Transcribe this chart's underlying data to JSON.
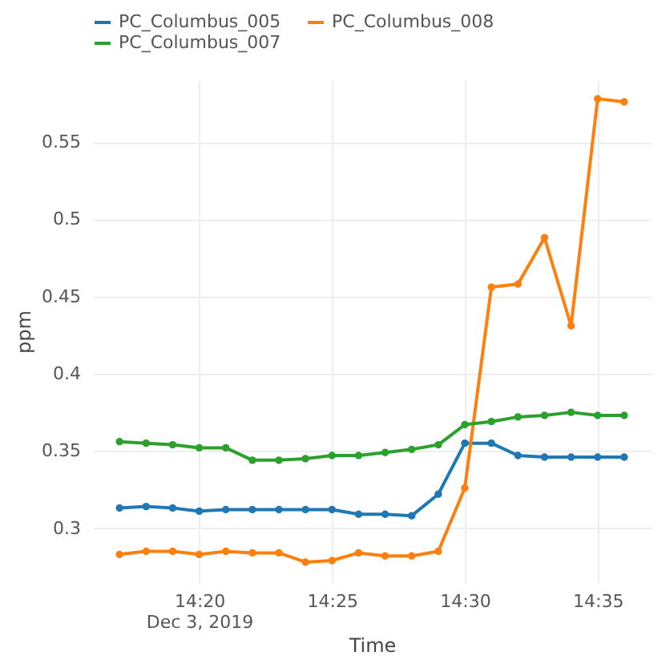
{
  "chart_data": {
    "type": "line",
    "xlabel": "Time",
    "ylabel": "ppm",
    "x": [
      "2019-12-03T14:17",
      "2019-12-03T14:18",
      "2019-12-03T14:19",
      "2019-12-03T14:20",
      "2019-12-03T14:21",
      "2019-12-03T14:22",
      "2019-12-03T14:23",
      "2019-12-03T14:24",
      "2019-12-03T14:25",
      "2019-12-03T14:26",
      "2019-12-03T14:27",
      "2019-12-03T14:28",
      "2019-12-03T14:29",
      "2019-12-03T14:30",
      "2019-12-03T14:31",
      "2019-12-03T14:32",
      "2019-12-03T14:33",
      "2019-12-03T14:34",
      "2019-12-03T14:35",
      "2019-12-03T14:36"
    ],
    "series": [
      {
        "name": "PC_Columbus_005",
        "color": "#1f77b4",
        "values": [
          0.313,
          0.314,
          0.313,
          0.311,
          0.312,
          0.312,
          0.312,
          0.312,
          0.312,
          0.309,
          0.309,
          0.308,
          0.322,
          0.355,
          0.355,
          0.347,
          0.346,
          0.346,
          0.346,
          0.346
        ]
      },
      {
        "name": "PC_Columbus_008",
        "color": "#ff7f0e",
        "values": [
          0.283,
          0.285,
          0.285,
          0.283,
          0.285,
          0.284,
          0.284,
          0.278,
          0.279,
          0.284,
          0.282,
          0.282,
          0.285,
          0.326,
          0.456,
          0.458,
          0.488,
          0.431,
          0.578,
          0.576
        ]
      },
      {
        "name": "PC_Columbus_007",
        "color": "#2ca02c",
        "values": [
          0.356,
          0.355,
          0.354,
          0.352,
          0.352,
          0.344,
          0.344,
          0.345,
          0.347,
          0.347,
          0.349,
          0.351,
          0.354,
          0.367,
          0.369,
          0.372,
          0.373,
          0.375,
          0.373,
          0.373
        ]
      }
    ],
    "xlim": [
      "2019-12-03T14:16",
      "2019-12-03T14:37"
    ],
    "xticks": [
      {
        "value": "2019-12-03T14:20",
        "label": "14:20\nDec 3, 2019"
      },
      {
        "value": "2019-12-03T14:25",
        "label": "14:25"
      },
      {
        "value": "2019-12-03T14:30",
        "label": "14:30"
      },
      {
        "value": "2019-12-03T14:35",
        "label": "14:35"
      }
    ],
    "ylim": [
      0.265,
      0.59
    ],
    "yticks": [
      0.3,
      0.35,
      0.4,
      0.45,
      0.5,
      0.55
    ],
    "grid": true,
    "legend": "top left",
    "marker": "circle",
    "line_style": "solid"
  }
}
